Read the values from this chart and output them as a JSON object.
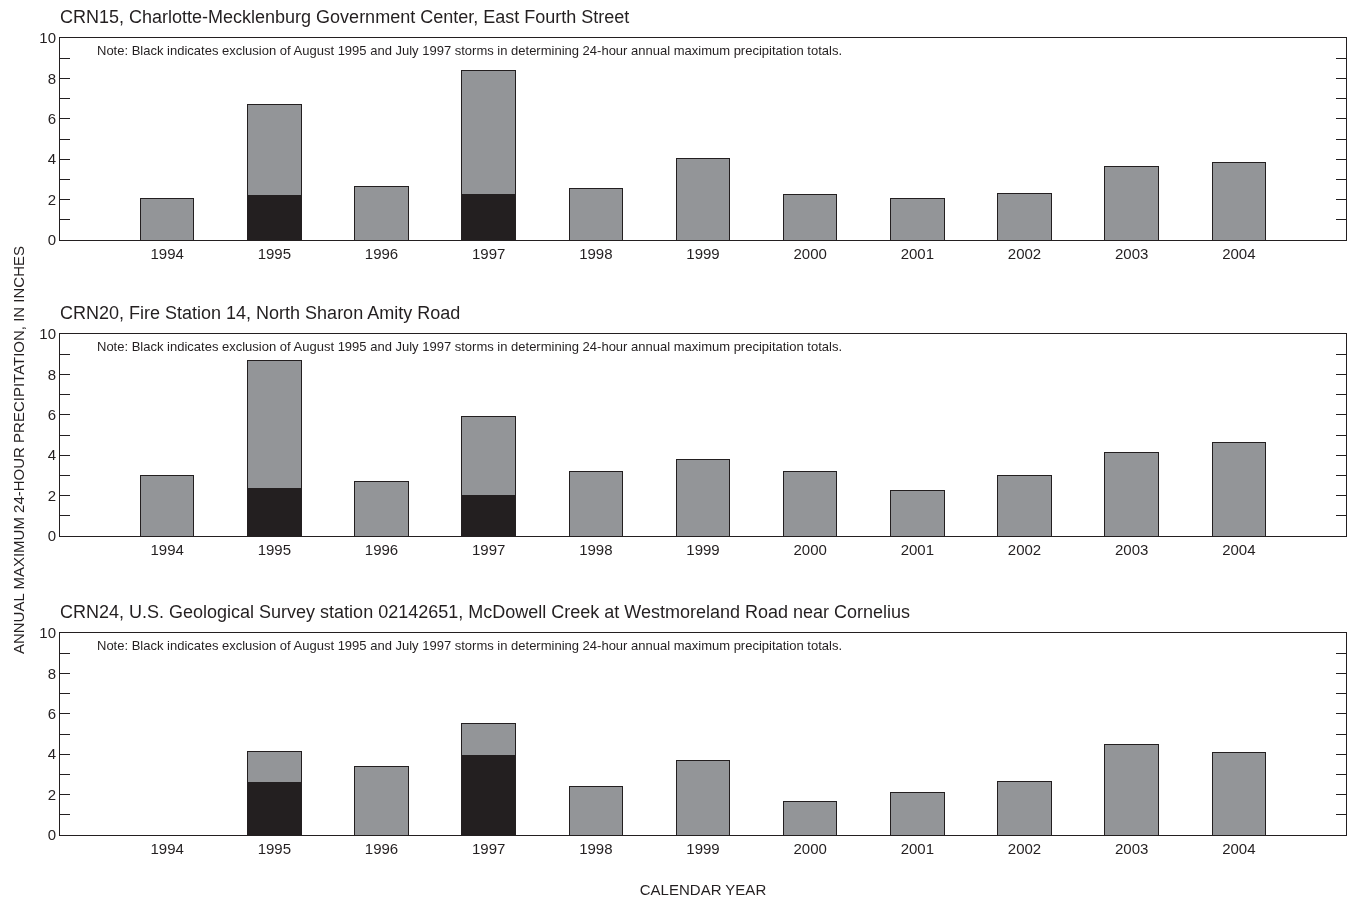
{
  "chart_data": [
    {
      "type": "bar",
      "title": "CRN15, Charlotte-Mecklenburg Government Center, East Fourth Street",
      "categories": [
        "1994",
        "1995",
        "1996",
        "1997",
        "1998",
        "1999",
        "2000",
        "2001",
        "2002",
        "2003",
        "2004"
      ],
      "stacked": true,
      "series": [
        {
          "color": "#231f20",
          "values": [
            null,
            2.2,
            null,
            2.25,
            null,
            null,
            null,
            null,
            null,
            null,
            null
          ]
        },
        {
          "color": "#939598",
          "values": [
            2.07,
            4.53,
            2.65,
            6.14,
            2.56,
            4.04,
            2.25,
            2.06,
            2.29,
            3.64,
            3.85
          ]
        }
      ],
      "ylim": [
        0,
        10
      ],
      "yticks": [
        0,
        {
          "value": 1,
          "label": null
        },
        2,
        {
          "value": 3,
          "label": null
        },
        4,
        {
          "value": 5,
          "label": null
        },
        6,
        {
          "value": 7,
          "label": null
        },
        8,
        {
          "value": 9,
          "label": null
        },
        10
      ],
      "annotations": [
        "Note: Black indicates exclusion of August 1995 and July 1997 storms in determining 24-hour annual maximum precipitation totals."
      ]
    },
    {
      "type": "bar",
      "title": "CRN20, Fire Station 14, North Sharon Amity Road",
      "ylabel": "ANNUAL MAXIMUM 24-HOUR PRECIPITATION, IN INCHES",
      "categories": [
        "1994",
        "1995",
        "1996",
        "1997",
        "1998",
        "1999",
        "2000",
        "2001",
        "2002",
        "2003",
        "2004"
      ],
      "stacked": true,
      "series": [
        {
          "color": "#231f20",
          "values": [
            null,
            2.37,
            null,
            1.99,
            null,
            null,
            null,
            null,
            null,
            null,
            null
          ]
        },
        {
          "color": "#939598",
          "values": [
            3.01,
            6.32,
            2.68,
            3.94,
            3.21,
            3.77,
            3.18,
            2.25,
            3.01,
            4.15,
            4.64
          ]
        }
      ],
      "ylim": [
        0,
        10
      ],
      "yticks": [
        0,
        {
          "value": 1,
          "label": null
        },
        2,
        {
          "value": 3,
          "label": null
        },
        4,
        {
          "value": 5,
          "label": null
        },
        6,
        {
          "value": 7,
          "label": null
        },
        8,
        {
          "value": 9,
          "label": null
        },
        10
      ],
      "annotations": [
        "Note: Black indicates exclusion of August 1995 and July 1997 storms in determining 24-hour annual maximum precipitation totals."
      ]
    },
    {
      "type": "bar",
      "title": "CRN24, U.S. Geological Survey station 02142651, McDowell Creek at Westmoreland Road near Cornelius",
      "xlabel": "CALENDAR YEAR",
      "categories": [
        "1994",
        "1995",
        "1996",
        "1997",
        "1998",
        "1999",
        "2000",
        "2001",
        "2002",
        "2003",
        "2004"
      ],
      "stacked": true,
      "series": [
        {
          "color": "#231f20",
          "values": [
            null,
            2.61,
            null,
            3.94,
            null,
            null,
            null,
            null,
            null,
            null,
            null
          ]
        },
        {
          "color": "#939598",
          "values": [
            null,
            1.51,
            3.38,
            1.57,
            2.41,
            3.7,
            1.66,
            2.11,
            2.63,
            4.5,
            4.08
          ]
        }
      ],
      "ylim": [
        0,
        10
      ],
      "yticks": [
        0,
        {
          "value": 1,
          "label": null
        },
        2,
        {
          "value": 3,
          "label": null
        },
        4,
        {
          "value": 5,
          "label": null
        },
        6,
        {
          "value": 7,
          "label": null
        },
        8,
        {
          "value": 9,
          "label": null
        },
        10
      ],
      "annotations": [
        "Note: Black indicates exclusion of August 1995 and July 1997 storms in determining 24-hour annual maximum precipitation totals."
      ]
    }
  ]
}
